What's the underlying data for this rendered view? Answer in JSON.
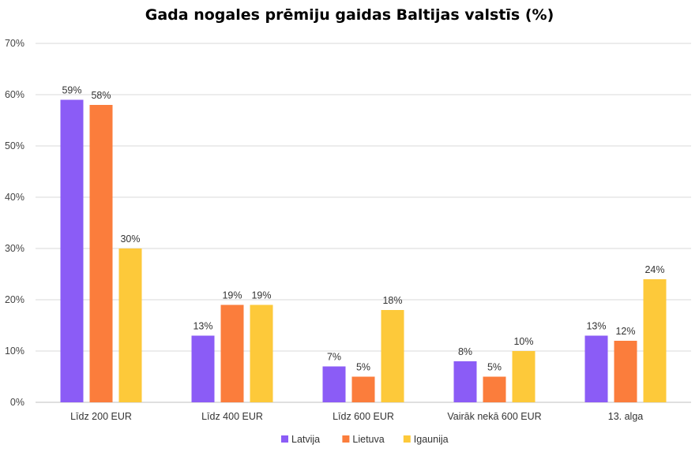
{
  "chart_data": {
    "type": "bar",
    "title": "Gada nogales prēmiju gaidas Baltijas valstīs (%)",
    "categories": [
      "Līdz 200 EUR",
      "Līdz 400 EUR",
      "Līdz 600 EUR",
      "Vairāk nekā 600 EUR",
      "13. alga"
    ],
    "series": [
      {
        "name": "Latvija",
        "color": "#8b5cf6",
        "values": [
          59,
          13,
          7,
          8,
          13
        ]
      },
      {
        "name": "Lietuva",
        "color": "#fb7d3c",
        "values": [
          58,
          19,
          5,
          5,
          12
        ]
      },
      {
        "name": "Igaunija",
        "color": "#fdc93a",
        "values": [
          30,
          19,
          18,
          10,
          24
        ]
      }
    ],
    "ylim": [
      0,
      70
    ],
    "yticks": [
      0,
      10,
      20,
      30,
      40,
      50,
      60,
      70
    ],
    "ytick_suffix": "%",
    "value_suffix": "%",
    "grid": true,
    "legend_position": "bottom-center",
    "xlabel": "",
    "ylabel": ""
  }
}
